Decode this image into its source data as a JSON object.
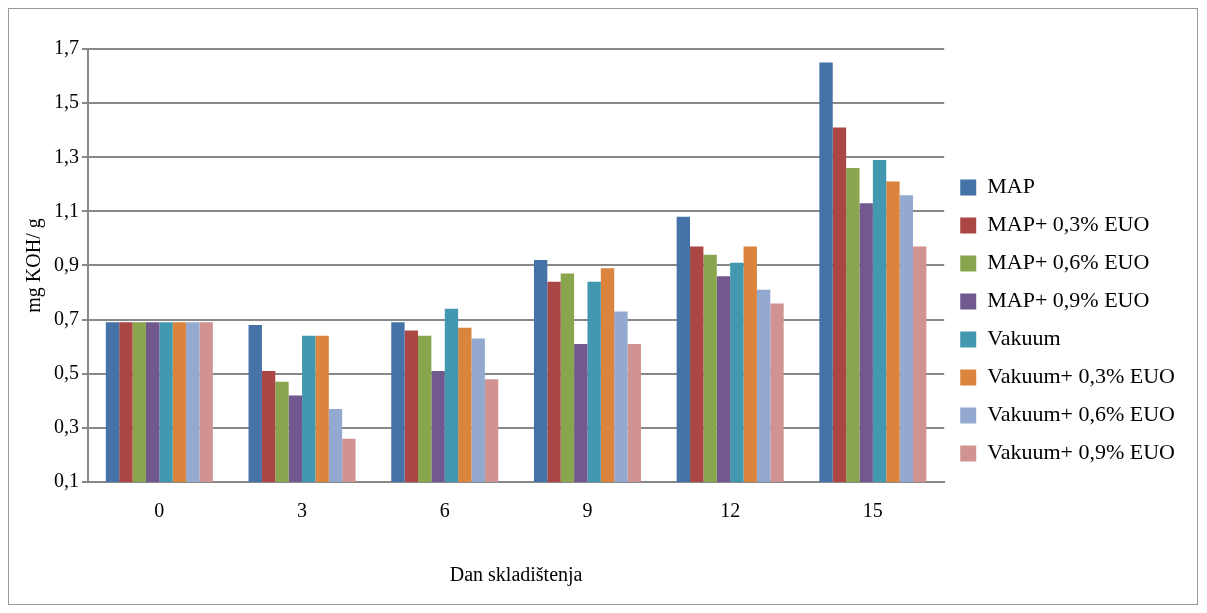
{
  "chart_data": {
    "type": "bar",
    "xlabel": "Dan skladištenja",
    "ylabel": "mg KOH/ g",
    "categories": [
      "0",
      "3",
      "6",
      "9",
      "12",
      "15"
    ],
    "series": [
      {
        "name": "MAP",
        "color": "#4572a7",
        "values": [
          0.69,
          0.68,
          0.69,
          0.92,
          1.08,
          1.65
        ]
      },
      {
        "name": "MAP+ 0,3% EUO",
        "color": "#aa4643",
        "values": [
          0.69,
          0.51,
          0.66,
          0.84,
          0.97,
          1.41
        ]
      },
      {
        "name": "MAP+ 0,6% EUO",
        "color": "#89a54e",
        "values": [
          0.69,
          0.47,
          0.64,
          0.87,
          0.94,
          1.26
        ]
      },
      {
        "name": "MAP+ 0,9% EUO",
        "color": "#71588f",
        "values": [
          0.69,
          0.42,
          0.51,
          0.61,
          0.86,
          1.13
        ]
      },
      {
        "name": "Vakuum",
        "color": "#4198af",
        "values": [
          0.69,
          0.64,
          0.74,
          0.84,
          0.91,
          1.29
        ]
      },
      {
        "name": "Vakuum+ 0,3% EUO",
        "color": "#db843d",
        "values": [
          0.69,
          0.64,
          0.67,
          0.89,
          0.97,
          1.21
        ]
      },
      {
        "name": "Vakuum+ 0,6% EUO",
        "color": "#93a9cf",
        "values": [
          0.69,
          0.37,
          0.63,
          0.73,
          0.81,
          1.16
        ]
      },
      {
        "name": "Vakuum+ 0,9% EUO",
        "color": "#d19392",
        "values": [
          0.69,
          0.26,
          0.48,
          0.61,
          0.76,
          0.97
        ]
      }
    ],
    "ylim": [
      0.1,
      1.7
    ],
    "yticks": [
      {
        "value": 0.1,
        "label": "0,1"
      },
      {
        "value": 0.3,
        "label": "0,3"
      },
      {
        "value": 0.5,
        "label": "0,5"
      },
      {
        "value": 0.7,
        "label": "0,7"
      },
      {
        "value": 0.9,
        "label": "0,9"
      },
      {
        "value": 1.1,
        "label": "1,1"
      },
      {
        "value": 1.3,
        "label": "1,3"
      },
      {
        "value": 1.5,
        "label": "1,5"
      },
      {
        "value": 1.7,
        "label": "1,7"
      }
    ],
    "grid": "y",
    "legend": "right"
  }
}
